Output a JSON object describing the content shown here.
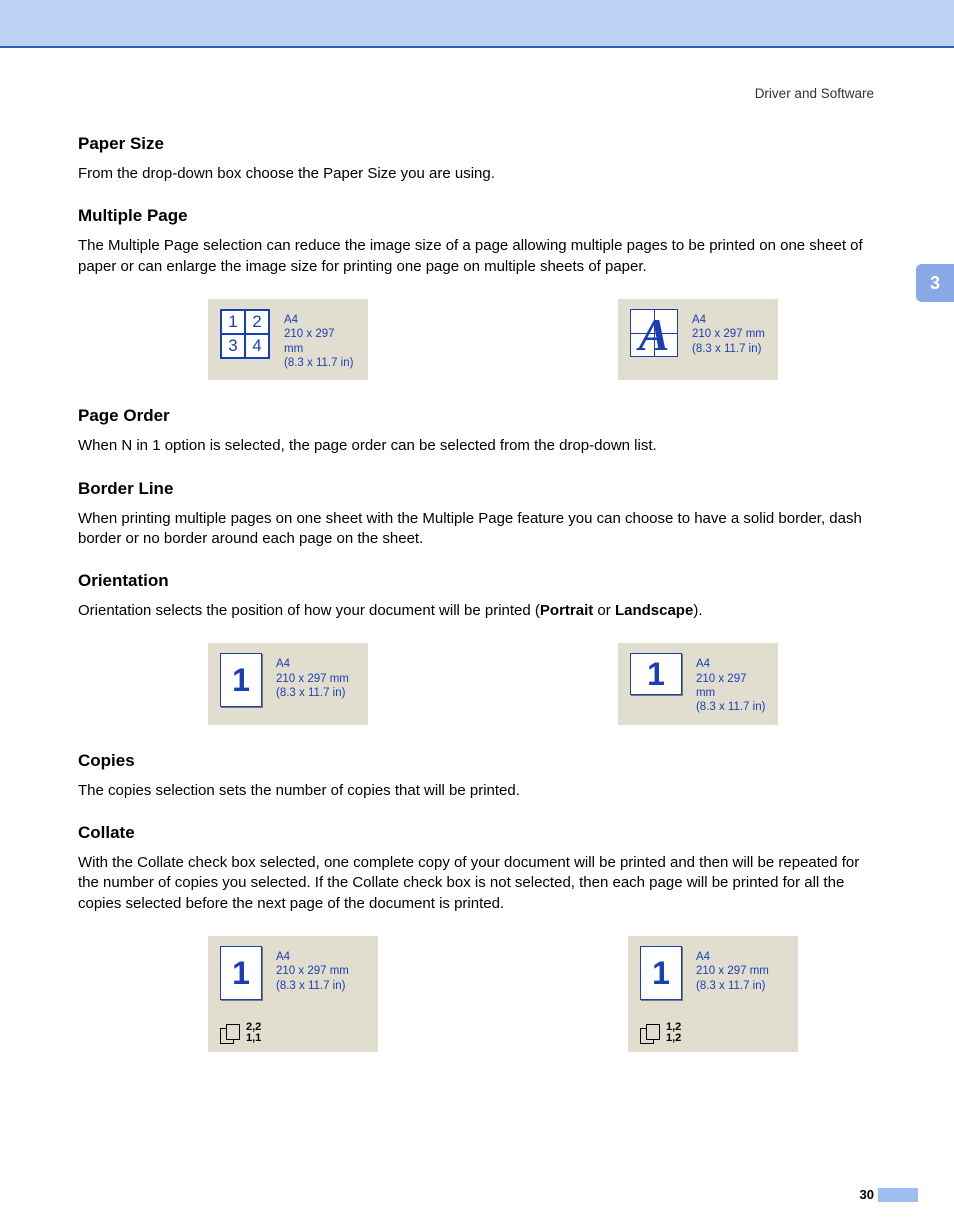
{
  "header": {
    "section": "Driver and Software",
    "chapter": "3",
    "page_number": "30"
  },
  "paper_size": {
    "heading": "Paper Size",
    "body": "From the drop-down box choose the Paper Size you are using."
  },
  "multiple_page": {
    "heading": "Multiple Page",
    "body": "The Multiple Page selection can reduce the image size of a page allowing multiple pages to be printed on one sheet of paper or can enlarge the image size for printing one page on multiple sheets of paper."
  },
  "spec": {
    "name": "A4",
    "mm": "210 x 297 mm",
    "in": "(8.3 x 11.7 in)"
  },
  "grid_cells": [
    "1",
    "2",
    "3",
    "4"
  ],
  "page_order": {
    "heading": "Page Order",
    "body": "When N in 1 option is selected, the page order can be selected from the drop-down list."
  },
  "border_line": {
    "heading": "Border Line",
    "body": "When printing multiple pages on one sheet with the Multiple Page feature you can choose to have a solid border, dash border or no border around each page on the sheet."
  },
  "orientation": {
    "heading": "Orientation",
    "body_pre": "Orientation selects the position of how your document will be printed (",
    "bold1": "Portrait",
    "mid": " or ",
    "bold2": "Landscape",
    "body_post": ")."
  },
  "copies": {
    "heading": "Copies",
    "body": "The copies selection sets the number of copies that will be printed."
  },
  "collate": {
    "heading": "Collate",
    "body": "With the Collate check box selected, one complete copy of your document will be printed and then will be repeated for the number of copies you selected. If the Collate check box is not selected, then each page will be printed for all the copies selected before the next page of the document is printed.",
    "on": {
      "top": "2,2",
      "bot": "1,1"
    },
    "off": {
      "top": "1,2",
      "bot": "1,2"
    }
  },
  "one": "1"
}
